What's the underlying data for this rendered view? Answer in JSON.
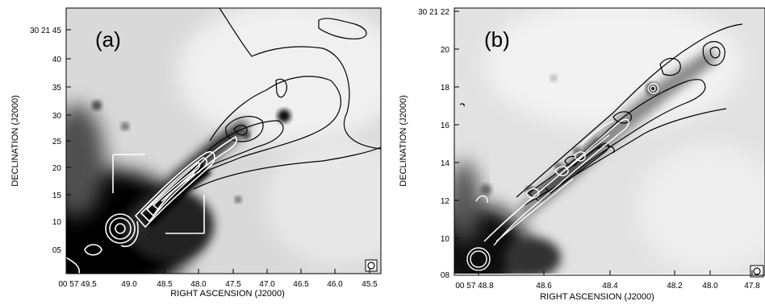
{
  "panels": [
    {
      "id": "a",
      "label": "(a)",
      "xlabel": "RIGHT ASCENSION (J2000)",
      "ylabel": "DECLINATION (J2000)",
      "xticks": [
        "00 57 49.5",
        "49.0",
        "48.5",
        "48.0",
        "47.5",
        "47.0",
        "46.5",
        "46.0",
        "45.5"
      ],
      "yticks": [
        "30 21 45",
        "40",
        "35",
        "30",
        "25",
        "20",
        "15",
        "10",
        "05"
      ]
    },
    {
      "id": "b",
      "label": "(b)",
      "xlabel": "RIGHT ASCENSION (J2000)",
      "ylabel": "DECLINATION (J2000)",
      "xticks": [
        "00 57 48.8",
        "48.6",
        "48.4",
        "48.2",
        "48.0",
        "47.8"
      ],
      "yticks": [
        "30 21 22",
        "20",
        "18",
        "16",
        "14",
        "12",
        "10",
        "08"
      ]
    }
  ]
}
